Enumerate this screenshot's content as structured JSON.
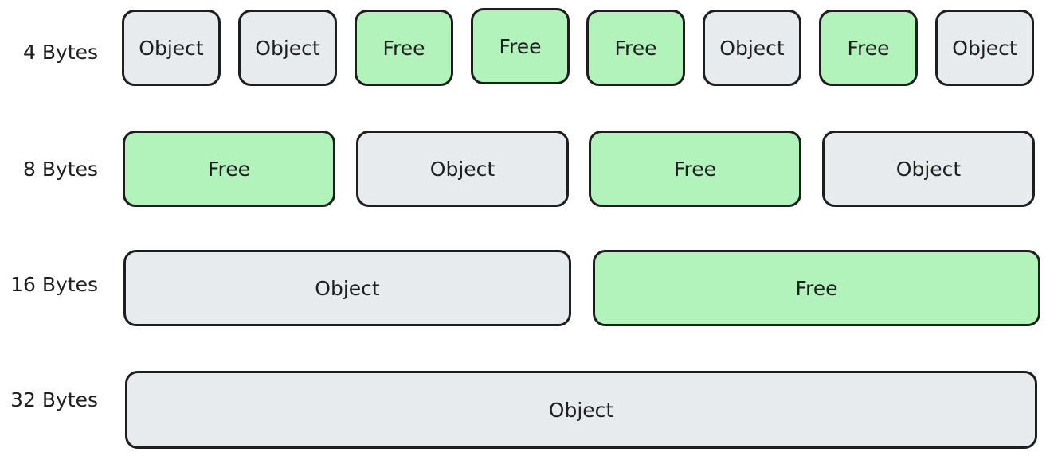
{
  "colors": {
    "object_fill": "#e8ebee",
    "free_fill": "#b2f2bb",
    "stroke": "#1e1e1e"
  },
  "rows": [
    {
      "label": "4 Bytes",
      "slots": [
        {
          "label": "Object",
          "kind": "object"
        },
        {
          "label": "Object",
          "kind": "object"
        },
        {
          "label": "Free",
          "kind": "free"
        },
        {
          "label": "Free",
          "kind": "free"
        },
        {
          "label": "Free",
          "kind": "free"
        },
        {
          "label": "Object",
          "kind": "object"
        },
        {
          "label": "Free",
          "kind": "free"
        },
        {
          "label": "Object",
          "kind": "object"
        }
      ]
    },
    {
      "label": "8 Bytes",
      "slots": [
        {
          "label": "Free",
          "kind": "free"
        },
        {
          "label": "Object",
          "kind": "object"
        },
        {
          "label": "Free",
          "kind": "free"
        },
        {
          "label": "Object",
          "kind": "object"
        }
      ]
    },
    {
      "label": "16 Bytes",
      "slots": [
        {
          "label": "Object",
          "kind": "object"
        },
        {
          "label": "Free",
          "kind": "free"
        }
      ]
    },
    {
      "label": "32 Bytes",
      "slots": [
        {
          "label": "Object",
          "kind": "object"
        }
      ]
    }
  ]
}
